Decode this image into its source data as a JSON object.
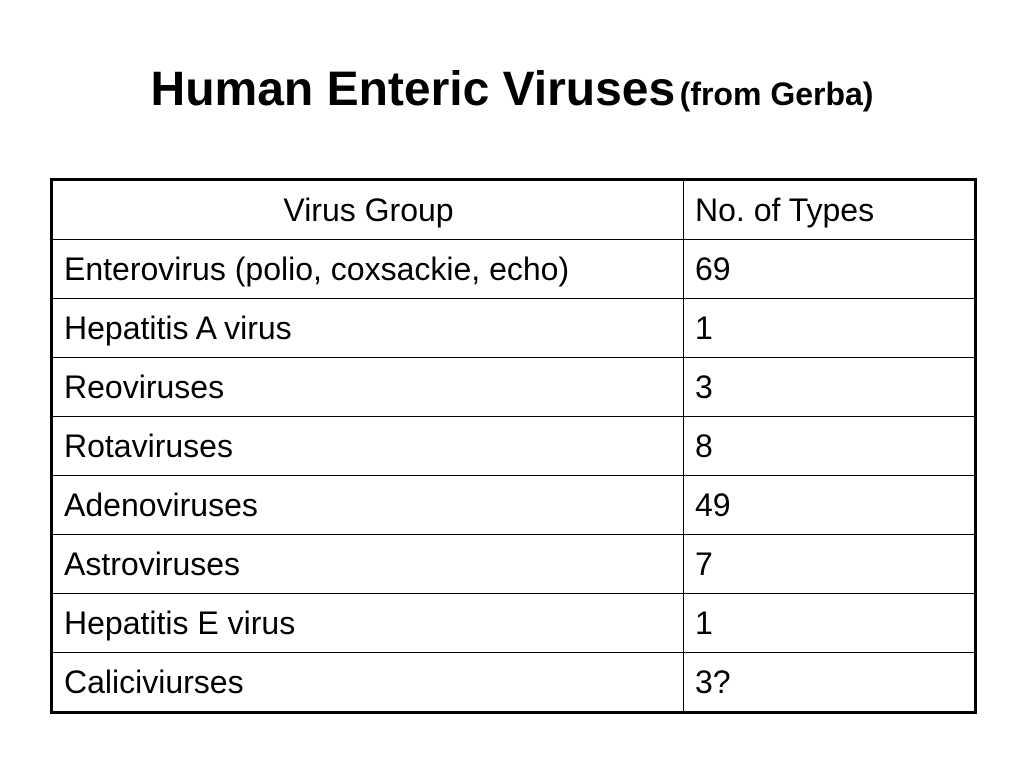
{
  "slide": {
    "title_main": "Human Enteric Viruses",
    "title_sub": "(from Gerba)"
  },
  "table": {
    "headers": [
      "Virus Group",
      "No. of Types"
    ],
    "rows": [
      [
        "Enterovirus (polio, coxsackie, echo)",
        "69"
      ],
      [
        "Hepatitis A virus",
        "1"
      ],
      [
        "Reoviruses",
        "3"
      ],
      [
        "Rotaviruses",
        "8"
      ],
      [
        "Adenoviruses",
        "49"
      ],
      [
        "Astroviruses",
        "7"
      ],
      [
        "Hepatitis E virus",
        "1"
      ],
      [
        "Caliciviurses",
        "3?"
      ]
    ]
  }
}
